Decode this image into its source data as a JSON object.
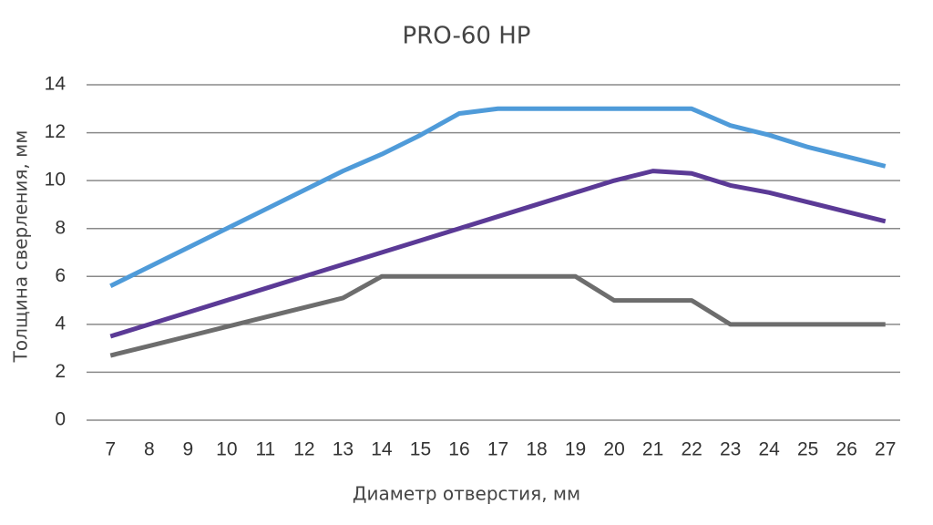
{
  "chart_data": {
    "type": "line",
    "title": "PRO-60 HP",
    "x_label": "Диаметр отверстия, мм",
    "y_label": "Толщина сверления, мм",
    "categories": [
      "7",
      "8",
      "9",
      "10",
      "11",
      "12",
      "13",
      "14",
      "15",
      "16",
      "17",
      "18",
      "19",
      "20",
      "21",
      "22",
      "23",
      "24",
      "25",
      "26",
      "27"
    ],
    "series": [
      {
        "color": "#4f9bd9",
        "values": [
          5.6,
          6.4,
          7.2,
          8.0,
          8.8,
          9.6,
          10.4,
          11.1,
          11.9,
          12.8,
          13.0,
          13.0,
          13.0,
          13.0,
          13.0,
          13.0,
          12.3,
          11.9,
          11.4,
          11.0,
          10.6
        ]
      },
      {
        "color": "#5b3a96",
        "values": [
          3.5,
          4.0,
          4.5,
          5.0,
          5.5,
          6.0,
          6.5,
          7.0,
          7.5,
          8.0,
          8.5,
          9.0,
          9.5,
          10.0,
          10.4,
          10.3,
          9.8,
          9.5,
          9.1,
          8.7,
          8.3
        ]
      },
      {
        "color": "#6d6d6d",
        "values": [
          2.7,
          3.1,
          3.5,
          3.9,
          4.3,
          4.7,
          5.1,
          6.0,
          6.0,
          6.0,
          6.0,
          6.0,
          6.0,
          5.0,
          5.0,
          5.0,
          4.0,
          4.0,
          4.0,
          4.0,
          4.0
        ]
      }
    ],
    "ylim": [
      0,
      14
    ],
    "yticks": [
      0,
      2,
      4,
      6,
      8,
      10,
      12,
      14
    ],
    "grid": true
  }
}
